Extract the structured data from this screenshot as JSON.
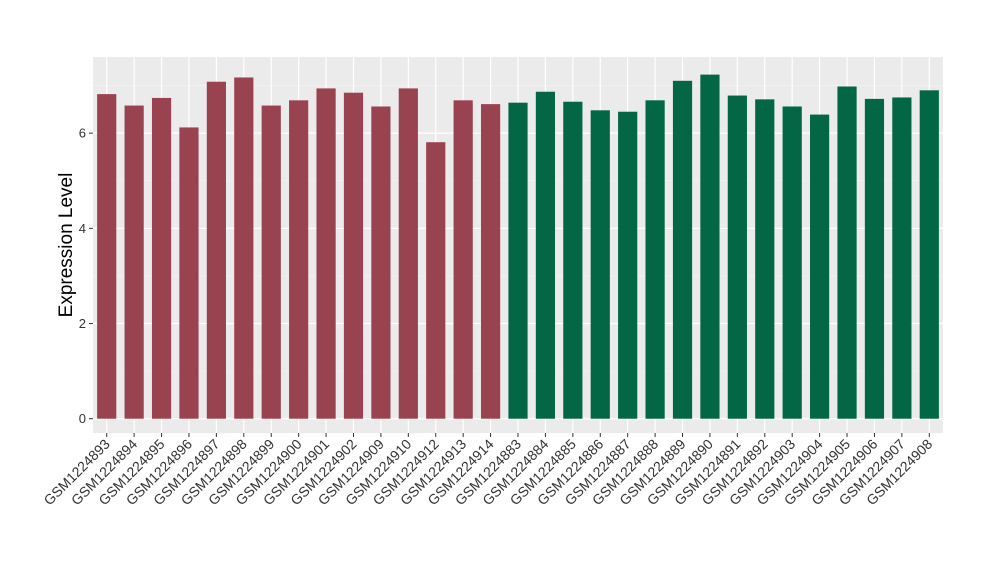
{
  "chart_data": {
    "type": "bar",
    "ylabel": "Expression Level",
    "xlabel": "",
    "ylim": [
      -0.3,
      7.6
    ],
    "yticks": [
      0,
      2,
      4,
      6
    ],
    "grid": true,
    "background": "#ebebeb",
    "categories": [
      "GSM1224893",
      "GSM1224894",
      "GSM1224895",
      "GSM1224896",
      "GSM1224897",
      "GSM1224898",
      "GSM1224899",
      "GSM1224900",
      "GSM1224901",
      "GSM1224902",
      "GSM1224909",
      "GSM1224910",
      "GSM1224912",
      "GSM1224913",
      "GSM1224914",
      "GSM1224883",
      "GSM1224884",
      "GSM1224885",
      "GSM1224886",
      "GSM1224887",
      "GSM1224888",
      "GSM1224889",
      "GSM1224890",
      "GSM1224891",
      "GSM1224892",
      "GSM1224903",
      "GSM1224904",
      "GSM1224905",
      "GSM1224906",
      "GSM1224907",
      "GSM1224908"
    ],
    "values": [
      6.82,
      6.58,
      6.74,
      6.12,
      7.08,
      7.17,
      6.58,
      6.69,
      6.94,
      6.85,
      6.56,
      6.94,
      5.81,
      6.69,
      6.61,
      6.64,
      6.87,
      6.66,
      6.48,
      6.45,
      6.69,
      7.1,
      7.23,
      6.79,
      6.71,
      6.56,
      6.39,
      6.98,
      6.72,
      6.75,
      6.9
    ],
    "groups": [
      {
        "color": "#9a4350",
        "count": 15
      },
      {
        "color": "#036644",
        "count": 16
      }
    ]
  }
}
